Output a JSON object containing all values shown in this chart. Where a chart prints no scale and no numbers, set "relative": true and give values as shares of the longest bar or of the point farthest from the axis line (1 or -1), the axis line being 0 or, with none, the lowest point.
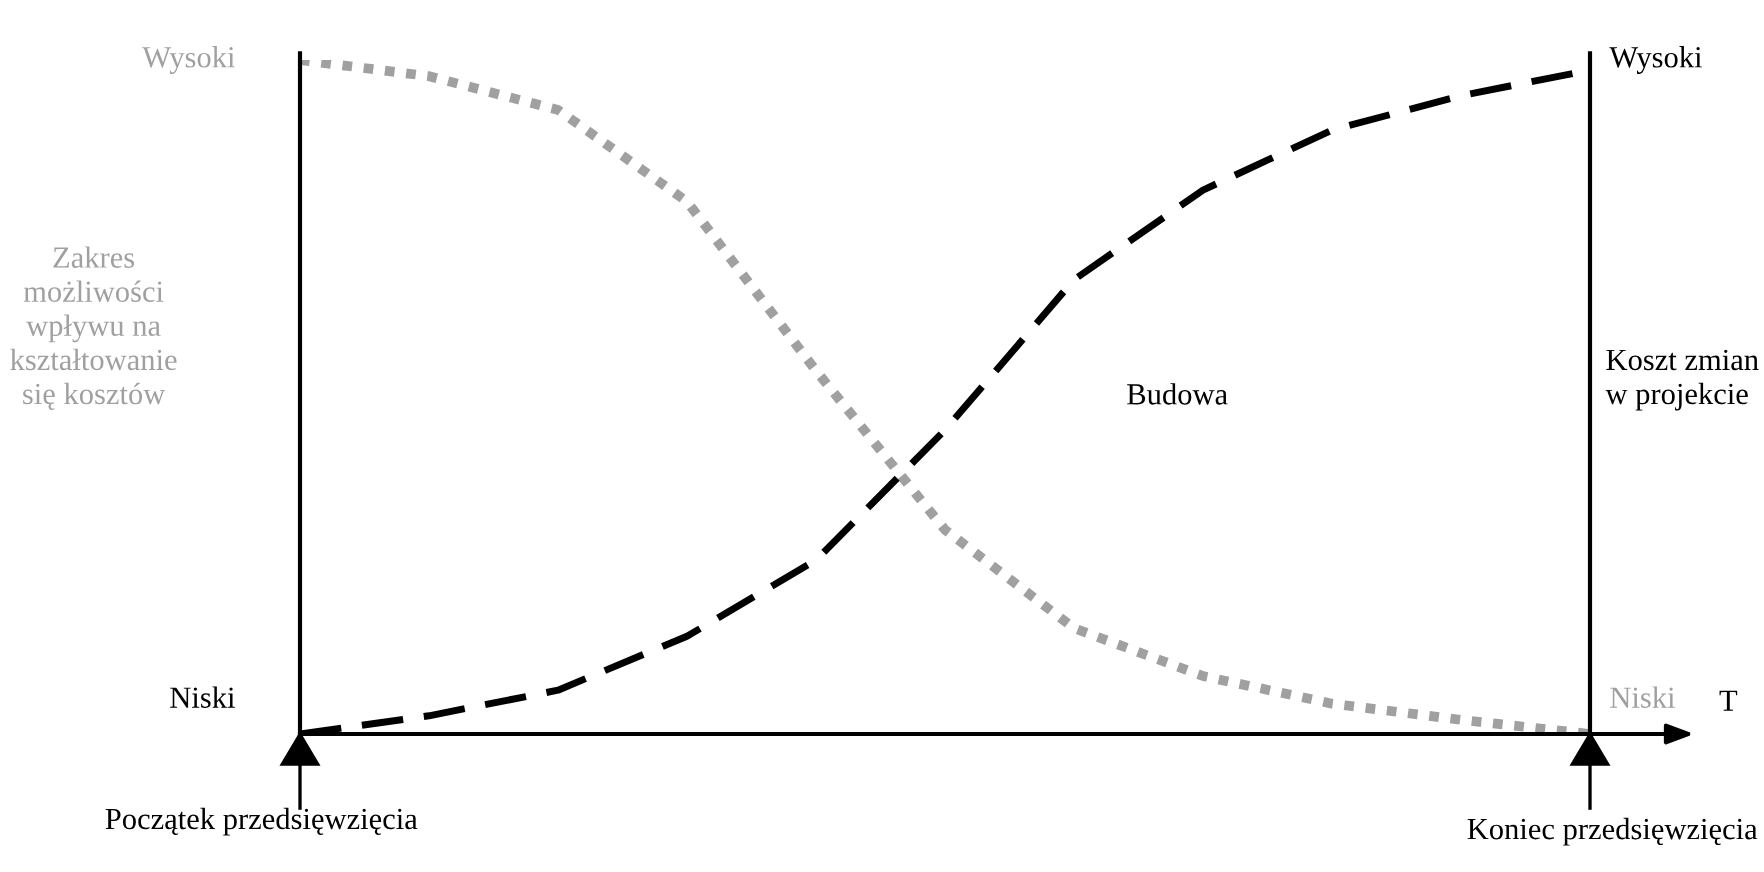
{
  "chart_data": {
    "type": "line",
    "relative": true,
    "xlabel": "T",
    "ylabel": "Zakres\nmożliwości\nwpływu na\nkształtowanie\nsię kosztów",
    "y2label": "Koszt zmian\nw projekcie",
    "categories": [
      null,
      null,
      null,
      null,
      null,
      null,
      null,
      null,
      null,
      null,
      null
    ],
    "series": [
      {
        "color": "#a0a0a0",
        "line_style": "dotted",
        "values": [
          1,
          0.976,
          0.926,
          0.79,
          0.539,
          0.303,
          0.157,
          0.086,
          0.045,
          0.021,
          0
        ]
      },
      {
        "color": "#000000",
        "line_style": "dashed",
        "values": [
          0,
          0.027,
          0.065,
          0.145,
          0.258,
          0.451,
          0.674,
          0.807,
          0.896,
          0.947,
          0.985
        ]
      }
    ],
    "annotations": [
      "Wysoki",
      "Niski",
      "Wysoki",
      "Niski",
      "Budowa",
      "Początek przedsięwzięcia",
      "Koniec przedsięwzięcia"
    ],
    "legend": false,
    "marker": "none"
  }
}
